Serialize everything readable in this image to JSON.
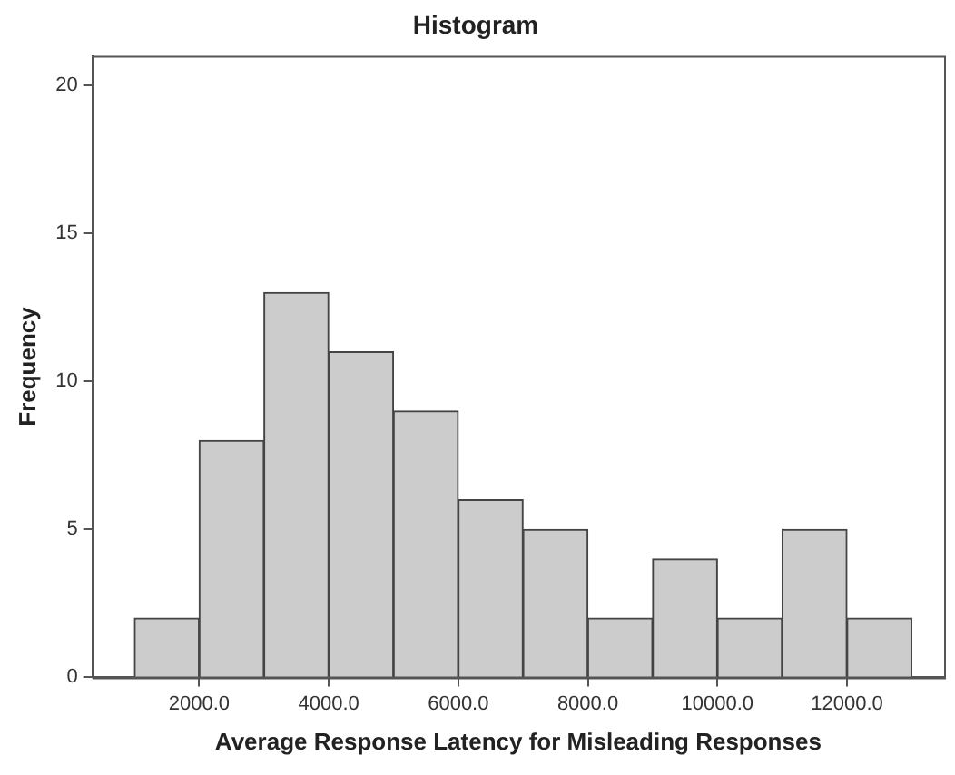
{
  "chart_data": {
    "type": "histogram",
    "title": "Histogram",
    "xlabel": "Average Response Latency for Misleading Responses",
    "ylabel": "Frequency",
    "bins": [
      1000,
      2000,
      3000,
      4000,
      5000,
      6000,
      7000,
      8000,
      9000,
      10000,
      11000,
      12000,
      13000
    ],
    "values": [
      2,
      8,
      13,
      11,
      9,
      6,
      5,
      2,
      4,
      2,
      5,
      2
    ],
    "color": "#cccccc",
    "xlim": [
      350,
      13500
    ],
    "xticks": [
      {
        "value": 2000,
        "label": "2000.0"
      },
      {
        "value": 4000,
        "label": "4000.0"
      },
      {
        "value": 6000,
        "label": "6000.0"
      },
      {
        "value": 8000,
        "label": "8000.0"
      },
      {
        "value": 10000,
        "label": "10000.0"
      },
      {
        "value": 12000,
        "label": "12000.0"
      }
    ],
    "ylim": [
      0,
      21
    ],
    "yticks": [
      0,
      5,
      10,
      15,
      20
    ],
    "grid": false,
    "legend": false
  }
}
